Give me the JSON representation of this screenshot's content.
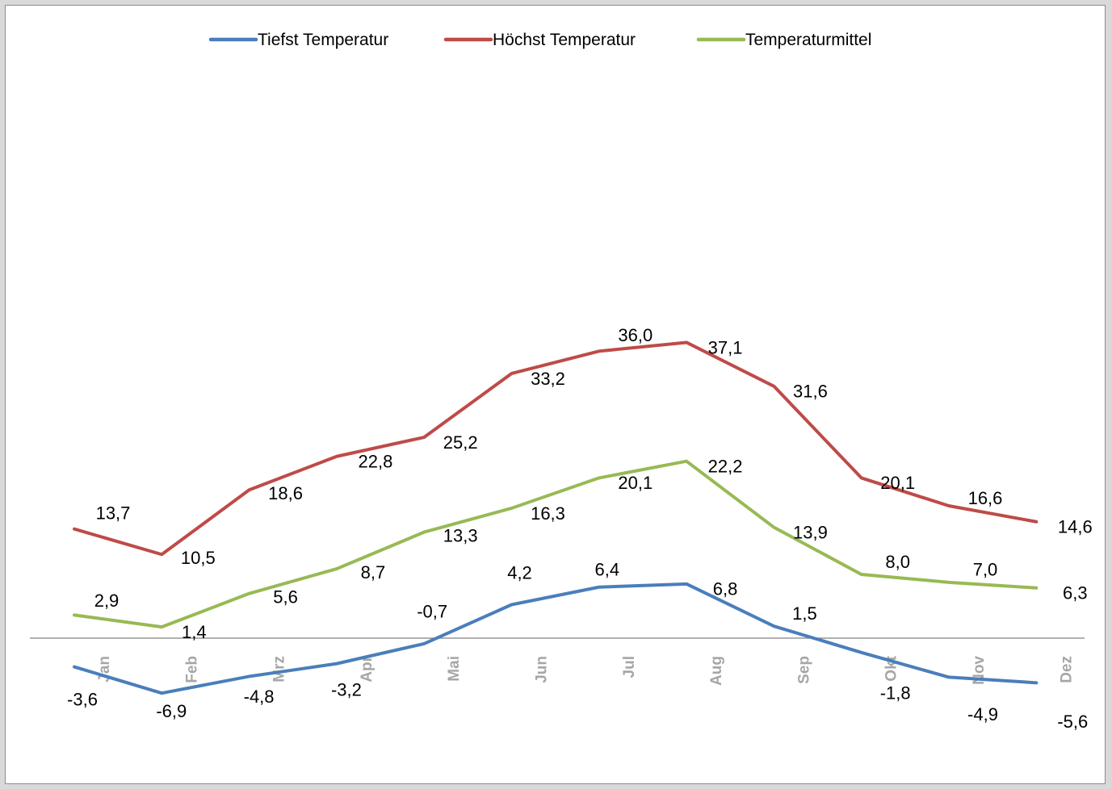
{
  "chart_data": {
    "type": "line",
    "categories": [
      "Jan",
      "Feb",
      "Mrz",
      "Apr",
      "Mai",
      "Jun",
      "Jul",
      "Aug",
      "Sep",
      "Okt",
      "Nov",
      "Dez"
    ],
    "ylim": [
      -8,
      40
    ],
    "grid": false,
    "legend_position": "top",
    "series": [
      {
        "name": "Tiefst Temperatur",
        "color": "#4a7ebb",
        "values": [
          -3.6,
          -6.9,
          -4.8,
          -3.2,
          -0.7,
          4.2,
          6.4,
          6.8,
          1.5,
          -1.8,
          -4.9,
          -5.6
        ],
        "labels": [
          "-3,6",
          "-6,9",
          "-4,8",
          "-3,2",
          "-0,7",
          "4,2",
          "6,4",
          "6,8",
          "1,5",
          "-1,8",
          "-4,9",
          "-5,6"
        ]
      },
      {
        "name": "Höchst Temperatur",
        "color": "#be4b48",
        "values": [
          13.7,
          10.5,
          18.6,
          22.8,
          25.2,
          33.2,
          36.0,
          37.1,
          31.6,
          20.1,
          16.6,
          14.6
        ],
        "labels": [
          "13,7",
          "10,5",
          "18,6",
          "22,8",
          "25,2",
          "33,2",
          "36,0",
          "37,1",
          "31,6",
          "20,1",
          "16,6",
          "14,6"
        ]
      },
      {
        "name": "Temperaturmittel",
        "color": "#98b954",
        "values": [
          2.9,
          1.4,
          5.6,
          8.7,
          13.3,
          16.3,
          20.1,
          22.2,
          13.9,
          8.0,
          7.0,
          6.3
        ],
        "labels": [
          "2,9",
          "1,4",
          "5,6",
          "8,7",
          "13,3",
          "16,3",
          "20,1",
          "22,2",
          "13,9",
          "8,0",
          "7,0",
          "6,3"
        ]
      }
    ]
  }
}
